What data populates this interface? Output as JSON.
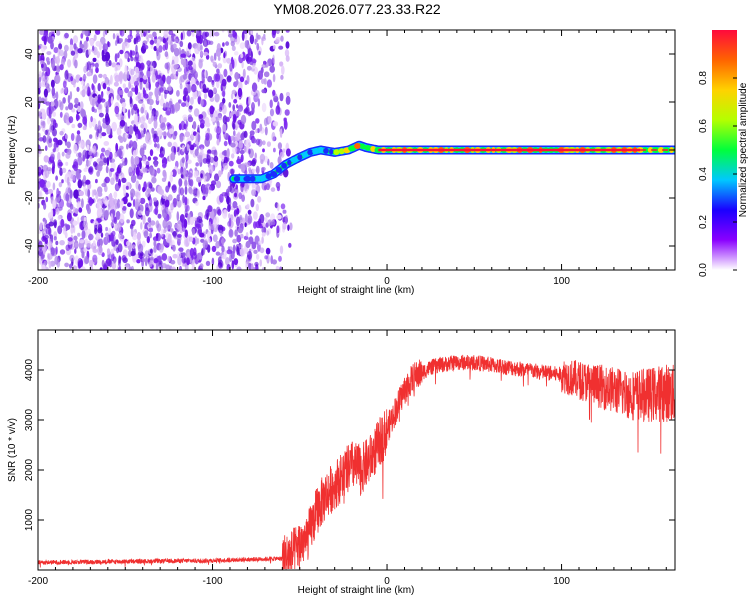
{
  "title": "YM08.2026.077.23.33.R22",
  "chart_data": [
    {
      "type": "heatmap",
      "xlabel": "Height of straight line (km)",
      "ylabel": "Frequency (Hz)",
      "xlim": [
        -200,
        165
      ],
      "ylim": [
        -50,
        50
      ],
      "xticks": [
        -200,
        -100,
        0,
        100
      ],
      "yticks": [
        -40,
        -20,
        0,
        20,
        40
      ],
      "colorbar": {
        "label": "Normalized spectral amplitude",
        "range": [
          0,
          1
        ],
        "ticks": [
          0.0,
          0.2,
          0.4,
          0.6,
          0.8
        ],
        "tick_labels": [
          "0.0",
          "0.2",
          "0.4",
          "0.6",
          "0.8"
        ],
        "colormap": [
          "#ffffff",
          "#8a00ff",
          "#1a00ff",
          "#00c8ff",
          "#00ff3c",
          "#b4ff00",
          "#ffd200",
          "#ff6400",
          "#ff0a3c"
        ]
      },
      "noise_region": {
        "x_range": [
          -200,
          -55
        ],
        "y_range": [
          -50,
          50
        ],
        "dominant_color": "#7e1ef0"
      },
      "signal_trace": {
        "x": [
          -88,
          -80,
          -72,
          -65,
          -58,
          -50,
          -44,
          -38,
          -30,
          -22,
          -16,
          -12,
          -5,
          0,
          40,
          80,
          120,
          140,
          165
        ],
        "y": [
          -12,
          -12,
          -12,
          -10,
          -6,
          -3,
          -1,
          0,
          -1,
          0,
          2,
          1,
          0,
          0,
          0,
          0,
          0,
          0,
          0
        ],
        "peak_color": "#ff0a3c",
        "core_x_range": [
          -5,
          145
        ]
      }
    },
    {
      "type": "line",
      "xlabel": "Height of straight line (km)",
      "ylabel": "SNR (10 * v/v)",
      "xlim": [
        -200,
        165
      ],
      "ylim": [
        0,
        4800
      ],
      "xticks": [
        -200,
        -100,
        0,
        100
      ],
      "yticks": [
        1000,
        2000,
        3000,
        4000
      ],
      "series": [
        {
          "color": "#f03030",
          "x": [
            -200,
            -150,
            -100,
            -60,
            -55,
            -45,
            -40,
            -35,
            -30,
            -25,
            -20,
            -15,
            -10,
            -5,
            0,
            5,
            10,
            15,
            20,
            25,
            30,
            40,
            50,
            60,
            70,
            80,
            90,
            100,
            110,
            120,
            130,
            140,
            150,
            160,
            165
          ],
          "y": [
            150,
            170,
            190,
            230,
            300,
            700,
            1200,
            1500,
            1700,
            1900,
            2100,
            2000,
            2200,
            2500,
            2800,
            3200,
            3600,
            3850,
            3950,
            4050,
            4100,
            4150,
            4150,
            4100,
            4050,
            4000,
            3950,
            3900,
            3800,
            3700,
            3600,
            3500,
            3500,
            3550,
            3500
          ]
        }
      ]
    }
  ]
}
